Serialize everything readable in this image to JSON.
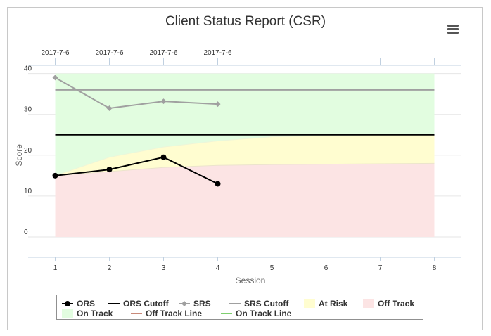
{
  "title": "Client Status Report (CSR)",
  "menu_icon": "hamburger-menu-icon",
  "colors": {
    "ors": "#000000",
    "ors_cutoff": "#000000",
    "srs": "#a0a0a0",
    "srs_cutoff": "#a0a0a0",
    "at_risk": "#fffdd0",
    "off_track": "#fce4e4",
    "on_track": "#e2fde0",
    "off_track_line": "#c98a7a",
    "on_track_line": "#7fcf6f"
  },
  "chart_data": {
    "type": "line",
    "xlabel": "Session",
    "ylabel": "Score",
    "x": [
      1,
      2,
      3,
      4,
      5,
      6,
      7,
      8
    ],
    "xlim": [
      0.5,
      8.5
    ],
    "ylim": [
      -5,
      42
    ],
    "y_ticks": [
      0,
      10,
      20,
      30,
      40
    ],
    "top_axis_labels": [
      "2017-7-6",
      "2017-7-6",
      "2017-7-6",
      "2017-7-6"
    ],
    "grid": true,
    "legend_position": "bottom",
    "series": [
      {
        "name": "ORS",
        "x": [
          1,
          2,
          3,
          4
        ],
        "values": [
          15,
          16.5,
          19.5,
          13
        ]
      },
      {
        "name": "ORS Cutoff",
        "x": [
          1,
          8
        ],
        "values": [
          25,
          25
        ]
      },
      {
        "name": "SRS",
        "x": [
          1,
          2,
          3,
          4
        ],
        "values": [
          39,
          31.5,
          33.2,
          32.5
        ]
      },
      {
        "name": "SRS Cutoff",
        "x": [
          1,
          8
        ],
        "values": [
          36,
          36
        ]
      },
      {
        "name": "At Risk"
      },
      {
        "name": "Off Track"
      },
      {
        "name": "On Track"
      },
      {
        "name": "Off Track Line",
        "x": [
          1,
          2,
          3,
          4,
          5,
          6,
          7,
          8
        ],
        "values": [
          15,
          16,
          17,
          17.5,
          17.7,
          17.8,
          17.9,
          18
        ]
      },
      {
        "name": "On Track Line",
        "x": [
          1,
          2,
          3,
          4,
          5,
          6,
          7,
          8
        ],
        "values": [
          15,
          19.5,
          22,
          23.5,
          24.5,
          24.8,
          25,
          25
        ]
      }
    ],
    "bands": {
      "x": [
        1,
        2,
        3,
        4,
        5,
        6,
        7,
        8
      ],
      "floor": 0,
      "ceiling": 40
    }
  }
}
